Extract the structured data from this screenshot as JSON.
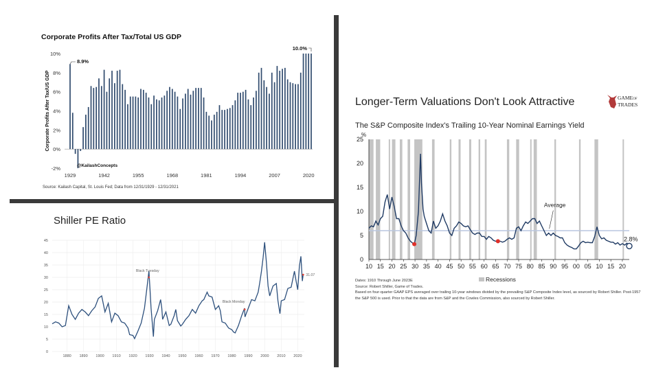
{
  "chart_data": [
    {
      "type": "bar",
      "title": "Corporate Profits After Tax/Total US GDP",
      "ylabel": "Corporate Profits After Tax/US GDP",
      "xlabel": "",
      "source": "Source: Kailash Capital, St. Louis Fed; Data from 12/31/1929 - 12/31/2021",
      "watermark": "@KailashConcepts",
      "ylim": [
        -2,
        10
      ],
      "y_ticks": [
        "-2%",
        "0%",
        "2%",
        "4%",
        "6%",
        "8%",
        "10%"
      ],
      "x_ticks": [
        "1929",
        "1942",
        "1955",
        "1968",
        "1981",
        "1994",
        "2007",
        "2020"
      ],
      "annotations": [
        {
          "x": 1929,
          "label": "8.9%"
        },
        {
          "x": 2021,
          "label": "10.0%"
        }
      ],
      "x": [
        1929,
        1930,
        1931,
        1932,
        1933,
        1934,
        1935,
        1936,
        1937,
        1938,
        1939,
        1940,
        1941,
        1942,
        1943,
        1944,
        1945,
        1946,
        1947,
        1948,
        1949,
        1950,
        1951,
        1952,
        1953,
        1954,
        1955,
        1956,
        1957,
        1958,
        1959,
        1960,
        1961,
        1962,
        1963,
        1964,
        1965,
        1966,
        1967,
        1968,
        1969,
        1970,
        1971,
        1972,
        1973,
        1974,
        1975,
        1976,
        1977,
        1978,
        1979,
        1980,
        1981,
        1982,
        1983,
        1984,
        1985,
        1986,
        1987,
        1988,
        1989,
        1990,
        1991,
        1992,
        1993,
        1994,
        1995,
        1996,
        1997,
        1998,
        1999,
        2000,
        2001,
        2002,
        2003,
        2004,
        2005,
        2006,
        2007,
        2008,
        2009,
        2010,
        2011,
        2012,
        2013,
        2014,
        2015,
        2016,
        2017,
        2018,
        2019,
        2020,
        2021
      ],
      "values": [
        8.9,
        3.8,
        -0.5,
        -2.0,
        -0.2,
        2.3,
        3.6,
        4.4,
        6.6,
        6.4,
        6.5,
        7.4,
        6.6,
        8.3,
        6.0,
        7.4,
        8.2,
        6.9,
        8.2,
        8.3,
        6.8,
        6.2,
        4.7,
        5.5,
        5.5,
        5.5,
        5.4,
        6.3,
        6.2,
        5.9,
        5.4,
        4.7,
        5.6,
        5.2,
        5.1,
        5.4,
        5.6,
        6.1,
        6.5,
        6.3,
        6.0,
        5.5,
        4.2,
        5.3,
        5.8,
        6.3,
        5.7,
        6.1,
        6.4,
        6.4,
        6.4,
        5.4,
        3.9,
        3.5,
        3.0,
        3.6,
        3.9,
        4.6,
        4.1,
        4.1,
        4.2,
        4.3,
        4.6,
        5.1,
        5.9,
        5.9,
        6.0,
        6.2,
        5.2,
        4.6,
        5.4,
        6.1,
        8.0,
        8.5,
        7.2,
        6.5,
        5.8,
        8.0,
        7.0,
        8.7,
        8.2,
        8.4,
        8.5,
        7.3,
        7.0,
        6.9,
        6.8,
        6.8,
        8.0,
        10.0,
        10.0,
        10.0,
        10.0
      ]
    },
    {
      "type": "line",
      "title": "Shiller PE Ratio",
      "xlabel": "",
      "ylabel": "",
      "ylim": [
        0,
        45
      ],
      "xlim": [
        1871,
        2024
      ],
      "y_ticks": [
        "0",
        "5",
        "10",
        "15",
        "20",
        "25",
        "30",
        "35",
        "40",
        "45"
      ],
      "x_ticks": [
        "1880",
        "1890",
        "1900",
        "1910",
        "1920",
        "1930",
        "1940",
        "1950",
        "1960",
        "1970",
        "1980",
        "1990",
        "2000",
        "2010",
        "2020"
      ],
      "annotations": [
        {
          "label": "Black Tuesday",
          "x": 1929.7,
          "y": 30.0
        },
        {
          "label": "Black Monday",
          "x": 1987.8,
          "y": 17.0
        },
        {
          "label": "31.07",
          "x": 2023.3,
          "y": 31.07
        }
      ],
      "x": [
        1871,
        1873,
        1875,
        1877,
        1879,
        1881,
        1883,
        1885,
        1887,
        1889,
        1891,
        1893,
        1895,
        1897,
        1899,
        1901,
        1903,
        1905,
        1907,
        1909,
        1911,
        1913,
        1915,
        1917,
        1918,
        1920,
        1921,
        1923,
        1925,
        1927,
        1928,
        1929.7,
        1930.5,
        1931,
        1932.4,
        1933,
        1935,
        1936.8,
        1937.5,
        1938,
        1940,
        1942,
        1943,
        1945,
        1946,
        1947,
        1949,
        1950,
        1952,
        1954,
        1956,
        1958,
        1960,
        1962,
        1963,
        1965,
        1966,
        1968,
        1970,
        1972,
        1973,
        1974,
        1976,
        1978,
        1980,
        1981,
        1982,
        1984,
        1986,
        1987.7,
        1988,
        1990,
        1992,
        1994,
        1996,
        1997,
        1998,
        1999,
        1999.9,
        2001,
        2002,
        2003,
        2005,
        2007,
        2008,
        2009.2,
        2010,
        2012,
        2014,
        2016,
        2018,
        2019,
        2020,
        2021,
        2021.9,
        2022.8,
        2023.3
      ],
      "values": [
        11.2,
        12.0,
        11.5,
        10.0,
        10.5,
        18.5,
        15.0,
        13.0,
        15.5,
        17.0,
        16.0,
        14.5,
        16.5,
        18.0,
        21.5,
        22.5,
        16.0,
        19.5,
        12.0,
        15.5,
        14.5,
        12.0,
        11.5,
        9.5,
        6.8,
        6.5,
        5.2,
        8.2,
        11.5,
        17.5,
        23.0,
        32.5,
        23.5,
        17.5,
        6.0,
        13.0,
        16.5,
        21.0,
        17.5,
        13.0,
        16.0,
        10.5,
        11.0,
        14.5,
        17.0,
        12.5,
        10.3,
        11.0,
        13.0,
        14.5,
        17.0,
        15.5,
        18.5,
        20.5,
        21.0,
        24.0,
        22.5,
        22.0,
        17.0,
        18.5,
        16.5,
        12.0,
        11.5,
        9.5,
        8.8,
        7.9,
        7.5,
        10.5,
        14.5,
        17.5,
        14.0,
        17.5,
        21.0,
        20.5,
        24.0,
        28.0,
        32.5,
        38.0,
        44.2,
        36.0,
        26.5,
        22.5,
        26.5,
        27.5,
        20.5,
        15.3,
        20.5,
        21.0,
        25.5,
        26.0,
        32.5,
        28.5,
        25.0,
        34.5,
        38.5,
        28.5,
        31.07
      ]
    },
    {
      "type": "line",
      "title": "Longer-Term Valuations Don't Look Attractive",
      "subtitle": "The S&P Composite Index's Trailing 10-Year Nominal Earnings Yield",
      "ylabel": "%",
      "xlabel": "",
      "ylim": [
        0,
        25
      ],
      "xlim": [
        1910,
        2023
      ],
      "y_ticks": [
        "0",
        "5",
        "10",
        "15",
        "20",
        "25"
      ],
      "x_ticks": [
        "10",
        "15",
        "20",
        "25",
        "30",
        "35",
        "40",
        "45",
        "50",
        "55",
        "60",
        "65",
        "70",
        "75",
        "80",
        "85",
        "90",
        "95",
        "00",
        "05",
        "10",
        "15",
        "20"
      ],
      "average": {
        "label": "Average",
        "value": 6.0
      },
      "end_label": "2.8%",
      "legend": "Recessions",
      "recessions": [
        [
          1910,
          1912
        ],
        [
          1913,
          1914.9
        ],
        [
          1918.6,
          1919.2
        ],
        [
          1920,
          1921.5
        ],
        [
          1923.4,
          1924.5
        ],
        [
          1926.8,
          1927.9
        ],
        [
          1929.7,
          1933.2
        ],
        [
          1937.4,
          1938.5
        ],
        [
          1945.1,
          1945.8
        ],
        [
          1948.9,
          1949.8
        ],
        [
          1953.5,
          1954.4
        ],
        [
          1957.6,
          1958.3
        ],
        [
          1960.3,
          1961.1
        ],
        [
          1969.9,
          1970.9
        ],
        [
          1973.9,
          1975.2
        ],
        [
          1980,
          1980.5
        ],
        [
          1981.5,
          1982.9
        ],
        [
          1990.5,
          1991.2
        ],
        [
          2001.2,
          2001.9
        ],
        [
          2007.9,
          2009.5
        ],
        [
          2020.1,
          2020.4
        ]
      ],
      "markers": [
        {
          "x": 1929.7,
          "y": 3.2
        },
        {
          "x": 1966,
          "y": 3.8
        }
      ],
      "notes": [
        "Dates: 1910 Through June 2023E",
        "Source: Robert Shiller, Game of Trades.",
        "Based on four-quarter GAAP EPS averaged over trailing 10-year windows divided by the prevailing S&P Composite Index level, as sourced by Robert Shiller. Post-1957 the S&P 500 is used. Prior to that the data are from S&P and the Cowles Commission, also sourced by Robert Shiller."
      ],
      "x": [
        1910,
        1911,
        1912,
        1913,
        1914,
        1915,
        1916,
        1917,
        1918,
        1919,
        1920,
        1921,
        1922,
        1923,
        1924,
        1925,
        1926,
        1927,
        1928,
        1929,
        1929.7,
        1930.5,
        1931.5,
        1932.4,
        1932.8,
        1933.5,
        1934,
        1935,
        1936,
        1937,
        1938,
        1939,
        1940,
        1941,
        1942,
        1943,
        1944,
        1945,
        1946,
        1947,
        1948,
        1949,
        1950,
        1951,
        1952,
        1953,
        1954,
        1955,
        1956,
        1957,
        1958,
        1959,
        1960,
        1961,
        1962,
        1963,
        1964,
        1965,
        1966,
        1967,
        1968,
        1969,
        1970,
        1971,
        1972,
        1973,
        1974,
        1975,
        1976,
        1977,
        1978,
        1979,
        1980,
        1981,
        1982,
        1983,
        1984,
        1985,
        1986,
        1987,
        1988,
        1989,
        1990,
        1991,
        1992,
        1993,
        1994,
        1995,
        1996,
        1997,
        1998,
        1999,
        2000,
        2001,
        2002,
        2003,
        2004,
        2005,
        2006,
        2007,
        2008,
        2009,
        2010,
        2011,
        2012,
        2013,
        2014,
        2015,
        2016,
        2017,
        2018,
        2019,
        2020,
        2021,
        2022,
        2023
      ],
      "values": [
        6.5,
        7.0,
        6.8,
        8.0,
        7.2,
        8.5,
        9.0,
        12.0,
        13.5,
        10.5,
        13.0,
        11.0,
        8.5,
        8.5,
        7.0,
        6.0,
        5.5,
        4.5,
        3.8,
        3.4,
        3.2,
        5.0,
        10.0,
        22.0,
        16.0,
        10.5,
        9.0,
        7.5,
        6.0,
        5.5,
        8.0,
        6.5,
        7.0,
        8.0,
        9.5,
        8.0,
        7.0,
        5.5,
        5.0,
        6.5,
        7.0,
        7.8,
        7.5,
        7.0,
        6.8,
        7.0,
        6.2,
        5.5,
        5.2,
        5.5,
        5.5,
        4.8,
        4.8,
        4.2,
        4.8,
        4.5,
        4.0,
        3.8,
        3.8,
        3.8,
        3.6,
        3.8,
        4.2,
        4.5,
        4.2,
        4.5,
        6.5,
        6.8,
        6.0,
        7.0,
        7.8,
        7.5,
        8.0,
        8.5,
        8.5,
        7.5,
        8.0,
        7.0,
        6.0,
        5.0,
        5.5,
        5.0,
        5.5,
        5.0,
        4.8,
        4.5,
        4.5,
        3.5,
        3.0,
        2.7,
        2.5,
        2.2,
        2.2,
        2.8,
        3.5,
        3.8,
        3.5,
        3.6,
        3.5,
        3.5,
        4.8,
        6.8,
        5.0,
        4.3,
        4.5,
        4.0,
        3.8,
        3.6,
        3.6,
        3.2,
        3.5,
        3.0,
        3.3,
        3.0,
        3.4,
        2.8
      ]
    }
  ],
  "logo": {
    "line1": "GAME",
    "line2": "OF",
    "line3": "TRADES"
  }
}
